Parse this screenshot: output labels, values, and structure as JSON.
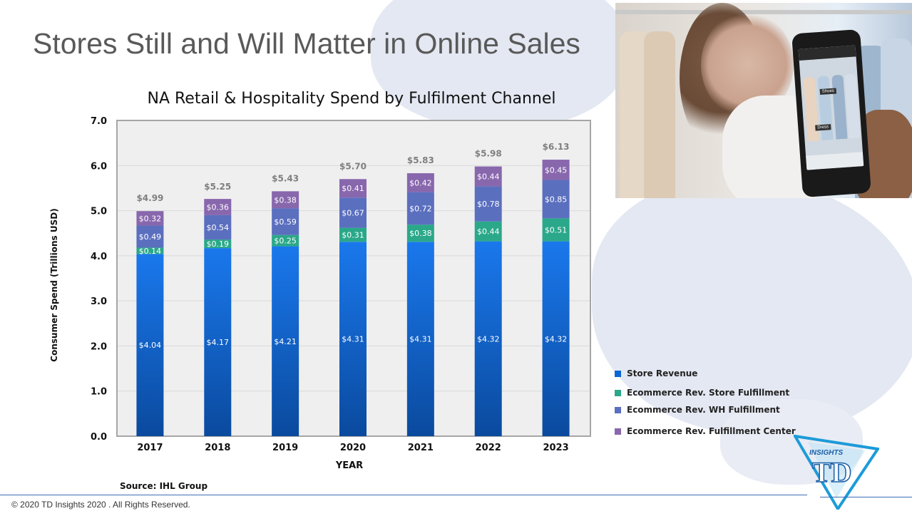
{
  "slide": {
    "title": "Stores Still and Will Matter in Online Sales",
    "source": "Source: IHL Group",
    "copyright": "© 2020 TD Insights 2020 . All Rights Reserved.",
    "logo_text_small": "INSIGHTS",
    "logo_text_big": "TD"
  },
  "photo": {
    "screen_labels": [
      "Shoes",
      "Dress"
    ]
  },
  "colors": {
    "store_revenue": "#0b66d6",
    "store_fulfillment": "#2aa889",
    "wh_fulfillment": "#5b6fbf",
    "fulfillment_center": "#8867ad",
    "plot_bg": "#efefef",
    "plot_border": "#a6a6a6"
  },
  "chart_data": {
    "type": "bar",
    "stacked": true,
    "title": "NA Retail & Hospitality Spend by Fulfilment Channel",
    "xlabel": "YEAR",
    "ylabel": "Consumer Spend (Trillions USD)",
    "ylim": [
      0,
      7
    ],
    "yticks": [
      "0.0",
      "1.0",
      "2.0",
      "3.0",
      "4.0",
      "5.0",
      "6.0",
      "7.0"
    ],
    "categories": [
      "2017",
      "2018",
      "2019",
      "2020",
      "2021",
      "2022",
      "2023"
    ],
    "series": [
      {
        "name": "Store Revenue",
        "color": "#0b66d6",
        "values": [
          4.04,
          4.17,
          4.21,
          4.31,
          4.31,
          4.32,
          4.32
        ],
        "labels": [
          "$4.04",
          "$4.17",
          "$4.21",
          "$4.31",
          "$4.31",
          "$4.32",
          "$4.32"
        ]
      },
      {
        "name": "Ecommerce Rev. Store Fulfillment",
        "color": "#2aa889",
        "values": [
          0.14,
          0.19,
          0.25,
          0.31,
          0.38,
          0.44,
          0.51
        ],
        "labels": [
          "$0.14",
          "$0.19",
          "$0.25",
          "$0.31",
          "$0.38",
          "$0.44",
          "$0.51"
        ]
      },
      {
        "name": "Ecommerce Rev. WH Fulfillment",
        "color": "#5b6fbf",
        "values": [
          0.49,
          0.54,
          0.59,
          0.67,
          0.72,
          0.78,
          0.85
        ],
        "labels": [
          "$0.49",
          "$0.54",
          "$0.59",
          "$0.67",
          "$0.72",
          "$0.78",
          "$0.85"
        ]
      },
      {
        "name": "Ecommerce Rev. Fulfillment Center",
        "color": "#8867ad",
        "values": [
          0.32,
          0.36,
          0.38,
          0.41,
          0.42,
          0.44,
          0.45
        ],
        "labels": [
          "$0.32",
          "$0.36",
          "$0.38",
          "$0.41",
          "$0.42",
          "$0.44",
          "$0.45"
        ]
      }
    ],
    "totals": [
      4.99,
      5.25,
      5.43,
      5.7,
      5.83,
      5.98,
      6.13
    ],
    "total_labels": [
      "$4.99",
      "$5.25",
      "$5.43",
      "$5.70",
      "$5.83",
      "$5.98",
      "$6.13"
    ],
    "grid": true,
    "legend_position": "right"
  }
}
